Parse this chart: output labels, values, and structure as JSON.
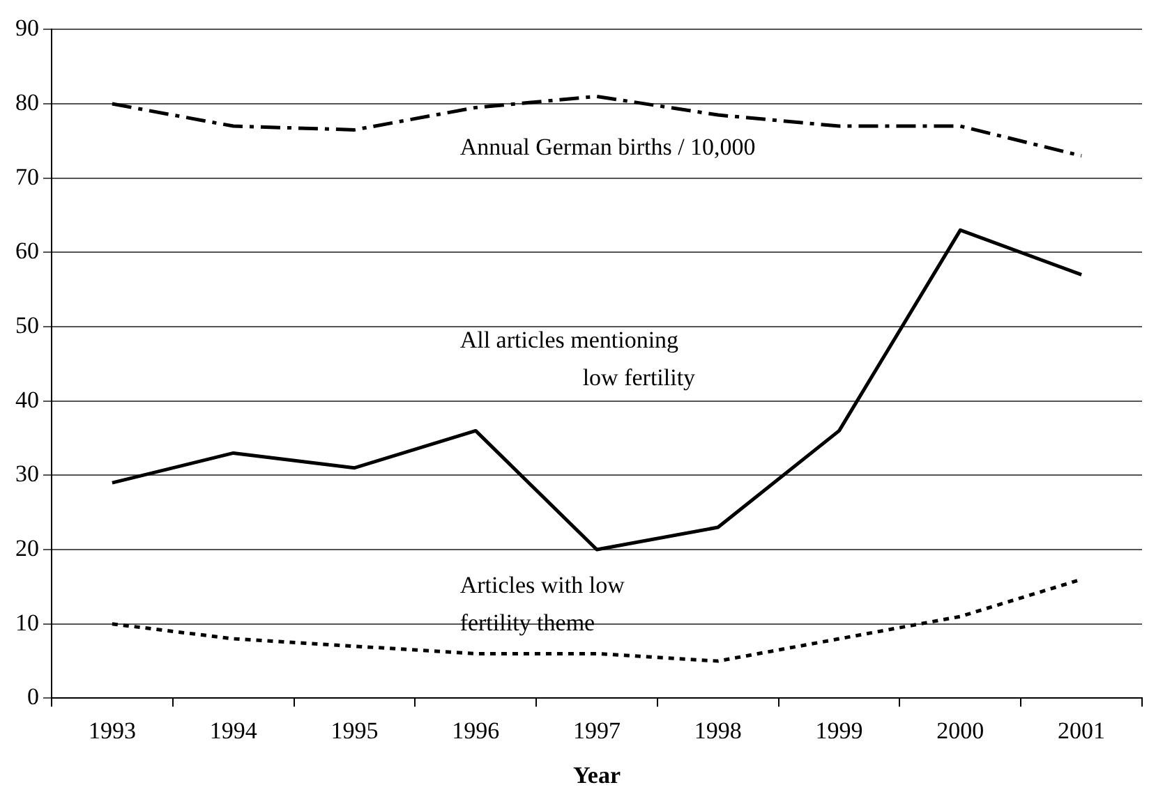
{
  "chart_data": {
    "type": "line",
    "xlabel": "Year",
    "categories": [
      "1993",
      "1994",
      "1995",
      "1996",
      "1997",
      "1998",
      "1999",
      "2000",
      "2001"
    ],
    "series": [
      {
        "name": "Annual German births / 10,000",
        "color": "#000000",
        "line_style": "dashed",
        "values": [
          80,
          77,
          76.5,
          79.5,
          81,
          78.5,
          77,
          77,
          73
        ]
      },
      {
        "name": "All articles mentioning low fertility",
        "color": "#000000",
        "line_style": "solid",
        "values": [
          29,
          33,
          31,
          36,
          20,
          23,
          36,
          63,
          57
        ]
      },
      {
        "name": "Articles with low fertility theme",
        "color": "#000000",
        "line_style": "dotted",
        "values": [
          10,
          8,
          7,
          6,
          6,
          5,
          8,
          11,
          16
        ]
      }
    ],
    "ylim": [
      0,
      90
    ],
    "yticks": [
      0,
      10,
      20,
      30,
      40,
      50,
      60,
      70,
      80,
      90
    ],
    "grid": "y",
    "legend": false,
    "marker": "none"
  }
}
